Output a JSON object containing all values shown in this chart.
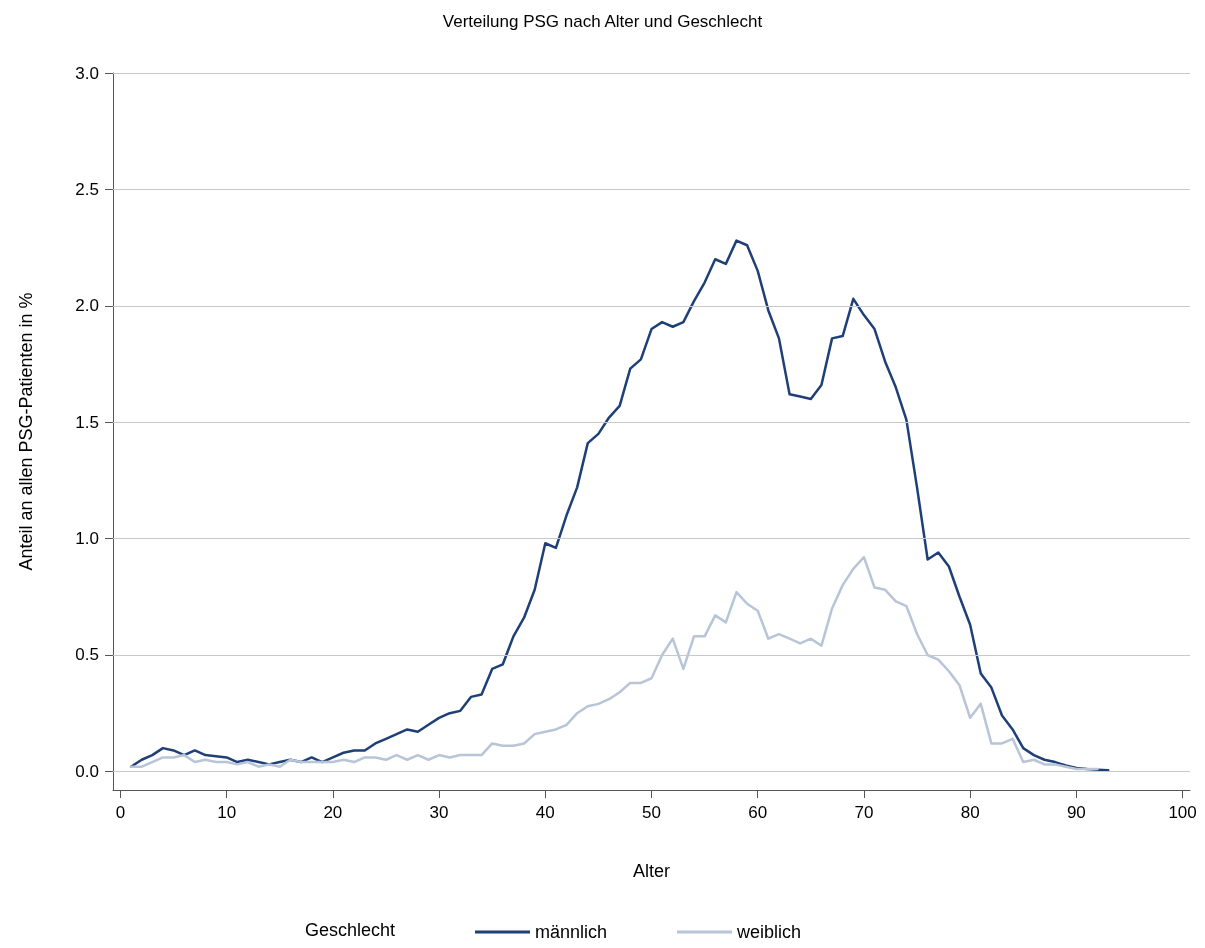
{
  "chart_data": {
    "type": "line",
    "title": "Verteilung PSG nach Alter und Geschlecht",
    "xlabel": "Alter",
    "ylabel": "Anteil an allen PSG-Patienten in %",
    "legend_title": "Geschlecht",
    "legend": "bottom",
    "grid": "y",
    "marker": "none",
    "line_style": "solid",
    "xlim": [
      -0.7,
      100.7
    ],
    "xticks": [
      0,
      10,
      20,
      30,
      40,
      50,
      60,
      70,
      80,
      90,
      100
    ],
    "ylim": [
      -0.08,
      3.0
    ],
    "yticks": [
      {
        "value": 0,
        "label": "0.0"
      },
      0.5,
      {
        "value": 1,
        "label": "1.0"
      },
      1.5,
      {
        "value": 2,
        "label": "2.0"
      },
      2.5,
      {
        "value": 3,
        "label": "3.0"
      }
    ],
    "series": [
      {
        "name": "männlich",
        "color": "#1f3f77",
        "x": [
          1,
          2,
          3,
          4,
          5,
          6,
          7,
          8,
          9,
          10,
          11,
          12,
          13,
          14,
          15,
          16,
          17,
          18,
          19,
          20,
          21,
          22,
          23,
          24,
          25,
          26,
          27,
          28,
          29,
          30,
          31,
          32,
          33,
          34,
          35,
          36,
          37,
          38,
          39,
          40,
          41,
          42,
          43,
          44,
          45,
          46,
          47,
          48,
          49,
          50,
          51,
          52,
          53,
          54,
          55,
          56,
          57,
          58,
          59,
          60,
          61,
          62,
          63,
          64,
          65,
          66,
          67,
          68,
          69,
          70,
          71,
          72,
          73,
          74,
          75,
          76,
          77,
          78,
          79,
          80,
          81,
          82,
          83,
          84,
          85,
          86,
          87,
          88,
          89,
          90,
          91,
          92,
          93
        ],
        "values": [
          0.02,
          0.05,
          0.07,
          0.1,
          0.09,
          0.07,
          0.09,
          0.07,
          0.065,
          0.06,
          0.04,
          0.05,
          0.04,
          0.03,
          0.04,
          0.05,
          0.04,
          0.06,
          0.04,
          0.06,
          0.08,
          0.09,
          0.09,
          0.12,
          0.14,
          0.16,
          0.18,
          0.17,
          0.2,
          0.23,
          0.25,
          0.26,
          0.32,
          0.33,
          0.44,
          0.46,
          0.58,
          0.66,
          0.78,
          0.98,
          0.96,
          1.1,
          1.22,
          1.41,
          1.45,
          1.52,
          1.57,
          1.73,
          1.77,
          1.9,
          1.93,
          1.91,
          1.93,
          2.02,
          2.1,
          2.2,
          2.18,
          2.28,
          2.26,
          2.15,
          1.98,
          1.86,
          1.62,
          1.61,
          1.6,
          1.66,
          1.86,
          1.87,
          2.03,
          1.96,
          1.9,
          1.76,
          1.65,
          1.51,
          1.22,
          0.91,
          0.94,
          0.88,
          0.75,
          0.63,
          0.42,
          0.36,
          0.24,
          0.18,
          0.1,
          0.07,
          0.05,
          0.04,
          0.025,
          0.015,
          0.01,
          0.007,
          0.005
        ]
      },
      {
        "name": "weiblich",
        "color": "#b8c4d8",
        "x": [
          1,
          2,
          3,
          4,
          5,
          6,
          7,
          8,
          9,
          10,
          11,
          12,
          13,
          14,
          15,
          16,
          17,
          18,
          19,
          20,
          21,
          22,
          23,
          24,
          25,
          26,
          27,
          28,
          29,
          30,
          31,
          32,
          33,
          34,
          35,
          36,
          37,
          38,
          39,
          40,
          41,
          42,
          43,
          44,
          45,
          46,
          47,
          48,
          49,
          50,
          51,
          52,
          53,
          54,
          55,
          56,
          57,
          58,
          59,
          60,
          61,
          62,
          63,
          64,
          65,
          66,
          67,
          68,
          69,
          70,
          71,
          72,
          73,
          74,
          75,
          76,
          77,
          78,
          79,
          80,
          81,
          82,
          83,
          84,
          85,
          86,
          87,
          88,
          89,
          90,
          91,
          92
        ],
        "values": [
          0.02,
          0.02,
          0.04,
          0.06,
          0.06,
          0.07,
          0.04,
          0.05,
          0.04,
          0.04,
          0.03,
          0.04,
          0.02,
          0.03,
          0.02,
          0.05,
          0.04,
          0.04,
          0.04,
          0.04,
          0.05,
          0.04,
          0.06,
          0.06,
          0.05,
          0.07,
          0.05,
          0.07,
          0.05,
          0.07,
          0.06,
          0.07,
          0.07,
          0.07,
          0.12,
          0.11,
          0.11,
          0.12,
          0.16,
          0.17,
          0.18,
          0.2,
          0.25,
          0.28,
          0.29,
          0.31,
          0.34,
          0.38,
          0.38,
          0.4,
          0.5,
          0.57,
          0.44,
          0.58,
          0.58,
          0.67,
          0.64,
          0.77,
          0.72,
          0.69,
          0.57,
          0.59,
          0.57,
          0.55,
          0.57,
          0.54,
          0.7,
          0.8,
          0.87,
          0.92,
          0.79,
          0.78,
          0.73,
          0.71,
          0.59,
          0.5,
          0.48,
          0.43,
          0.37,
          0.23,
          0.29,
          0.12,
          0.12,
          0.14,
          0.04,
          0.05,
          0.03,
          0.03,
          0.02,
          0.01,
          0.01,
          0.01
        ]
      }
    ]
  }
}
